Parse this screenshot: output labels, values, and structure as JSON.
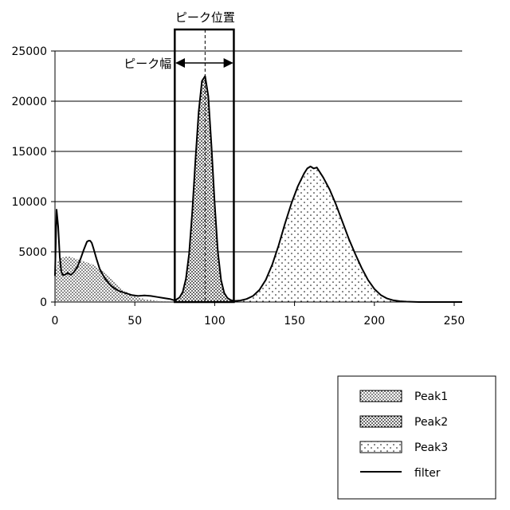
{
  "chart_data": {
    "type": "area",
    "xlim": [
      0,
      255
    ],
    "ylim": [
      0,
      25000
    ],
    "x_ticks": [
      0,
      50,
      100,
      150,
      200,
      250
    ],
    "y_ticks": [
      0,
      5000,
      10000,
      15000,
      20000,
      25000
    ],
    "grid": "horizontal",
    "legend_position": "bottom-right",
    "annotations": {
      "peak_position": "ピーク位置",
      "peak_width": "ピーク幅",
      "peak_position_x": 94,
      "window_x": [
        75,
        112
      ]
    },
    "series": [
      {
        "name": "Peak1",
        "pattern": "dense-dots",
        "x": [
          0,
          2,
          4,
          6,
          8,
          10,
          12,
          14,
          16,
          18,
          20,
          22,
          24,
          26,
          28,
          30,
          32,
          34,
          36,
          38,
          40,
          44,
          48,
          52,
          56,
          60,
          64,
          68,
          72,
          75
        ],
        "y": [
          2600,
          4200,
          4400,
          4500,
          4550,
          4500,
          4350,
          4250,
          4150,
          4050,
          3950,
          3850,
          3700,
          3500,
          3300,
          3050,
          2750,
          2450,
          2150,
          1850,
          1550,
          1050,
          700,
          450,
          300,
          200,
          130,
          80,
          40,
          0
        ]
      },
      {
        "name": "Peak2",
        "pattern": "dots",
        "x": [
          75,
          78,
          80,
          82,
          84,
          86,
          88,
          90,
          92,
          94,
          96,
          98,
          100,
          102,
          104,
          106,
          108,
          110,
          112
        ],
        "y": [
          150,
          450,
          1000,
          2300,
          4800,
          9000,
          14200,
          19000,
          22000,
          22500,
          20500,
          15500,
          9800,
          5000,
          2200,
          900,
          400,
          200,
          100
        ]
      },
      {
        "name": "Peak3",
        "pattern": "sparse-dots",
        "x": [
          112,
          116,
          120,
          124,
          128,
          132,
          136,
          140,
          144,
          148,
          152,
          156,
          160,
          164,
          168,
          172,
          176,
          180,
          184,
          188,
          192,
          196,
          200,
          204,
          208,
          212,
          216,
          220,
          224,
          228
        ],
        "y": [
          50,
          150,
          300,
          600,
          1200,
          2200,
          3700,
          5600,
          7800,
          9800,
          11500,
          12800,
          13300,
          13200,
          12400,
          11200,
          9700,
          8000,
          6300,
          4800,
          3400,
          2200,
          1300,
          700,
          350,
          170,
          80,
          40,
          15,
          0
        ]
      },
      {
        "name": "filter",
        "line": true,
        "x": [
          0,
          1,
          2,
          3,
          4,
          5,
          6,
          8,
          10,
          12,
          14,
          16,
          18,
          20,
          21,
          22,
          23,
          24,
          26,
          28,
          30,
          32,
          34,
          36,
          38,
          40,
          44,
          48,
          52,
          56,
          60,
          64,
          68,
          72,
          75,
          78,
          80,
          82,
          84,
          86,
          88,
          90,
          92,
          94,
          96,
          98,
          100,
          102,
          104,
          106,
          108,
          110,
          112,
          116,
          120,
          124,
          128,
          132,
          136,
          140,
          144,
          148,
          152,
          156,
          158,
          160,
          162,
          164,
          166,
          168,
          172,
          176,
          180,
          184,
          188,
          192,
          196,
          200,
          204,
          208,
          212,
          216,
          220,
          224,
          228,
          235,
          245,
          255
        ],
        "y": [
          2600,
          9200,
          7500,
          4500,
          3000,
          2700,
          2700,
          2900,
          2700,
          3000,
          3500,
          4300,
          5200,
          6000,
          6100,
          6100,
          5900,
          5400,
          4300,
          3300,
          2700,
          2200,
          1800,
          1500,
          1300,
          1100,
          900,
          700,
          600,
          650,
          600,
          500,
          400,
          300,
          150,
          450,
          1000,
          2300,
          4800,
          9000,
          14200,
          19000,
          22000,
          22500,
          20500,
          15500,
          9800,
          5000,
          2200,
          900,
          400,
          200,
          100,
          150,
          300,
          600,
          1200,
          2200,
          3700,
          5600,
          7800,
          9800,
          11500,
          12800,
          13300,
          13500,
          13300,
          13400,
          12900,
          12400,
          11200,
          9700,
          8000,
          6300,
          4800,
          3400,
          2200,
          1300,
          700,
          350,
          170,
          80,
          40,
          15,
          0,
          0,
          0,
          0
        ]
      }
    ]
  }
}
